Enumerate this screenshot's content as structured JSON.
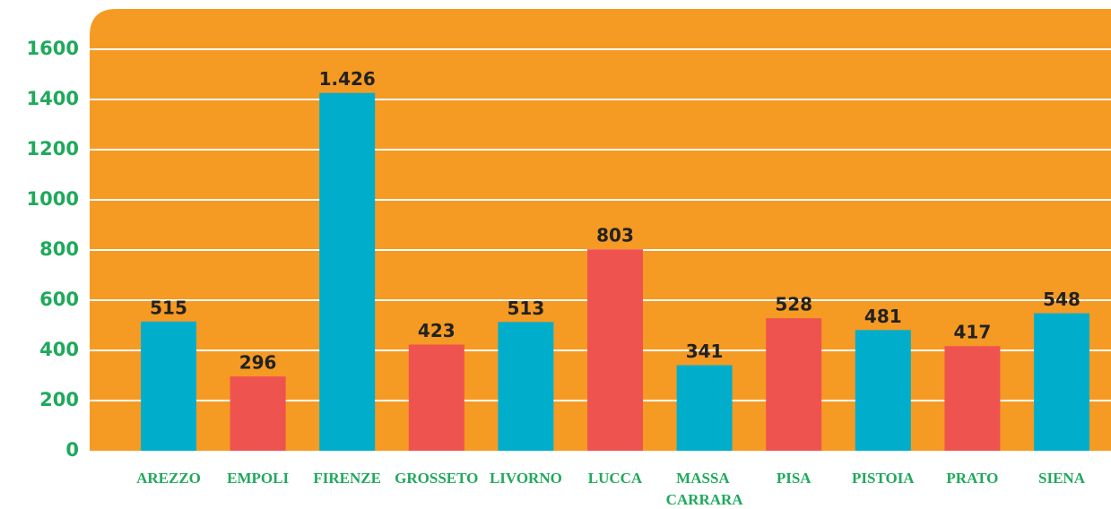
{
  "chart_data": {
    "type": "bar",
    "categories": [
      "AREZZO",
      "EMPOLI",
      "FIRENZE",
      "GROSSETO",
      "LIVORNO",
      "LUCCA",
      "MASSA CARRARA",
      "PISA",
      "PISTOIA",
      "PRATO",
      "SIENA"
    ],
    "values": [
      515,
      296,
      1426,
      423,
      513,
      803,
      341,
      528,
      481,
      417,
      548
    ],
    "value_labels": [
      "515",
      "296",
      "1.426",
      "423",
      "513",
      "803",
      "341",
      "528",
      "481",
      "417",
      "548"
    ],
    "colors": [
      "#00aecb",
      "#ef5350",
      "#00aecb",
      "#ef5350",
      "#00aecb",
      "#ef5350",
      "#00aecb",
      "#ef5350",
      "#00aecb",
      "#ef5350",
      "#00aecb"
    ],
    "ylim": [
      0,
      1600
    ],
    "yticks": [
      0,
      200,
      400,
      600,
      800,
      1000,
      1200,
      1400,
      1600
    ],
    "grid": true
  }
}
